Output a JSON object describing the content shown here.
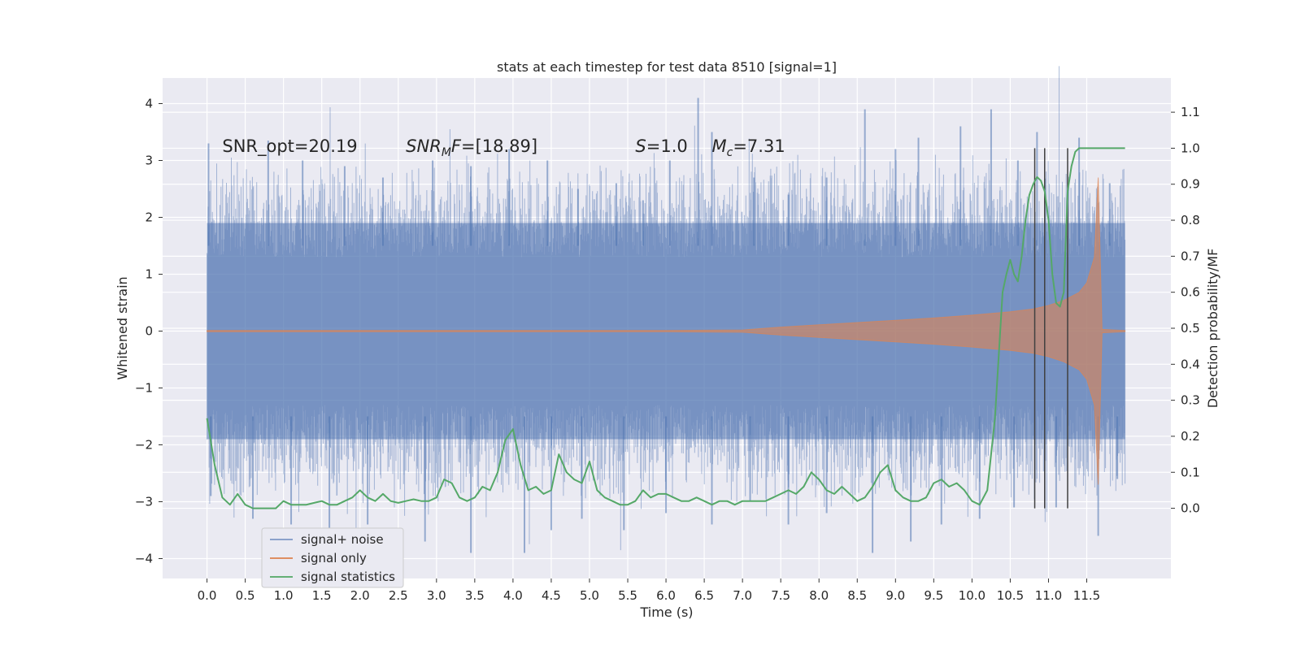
{
  "chart_data": {
    "type": "line",
    "title": "stats at each timestep for test data 8510 [signal=1]",
    "xlabel": "Time (s)",
    "ylabel_left": "Whitened strain",
    "ylabel_right": "Detection probability/MF",
    "xlim": [
      -0.58,
      12.6
    ],
    "ylim_left": [
      -4.35,
      4.45
    ],
    "ylim_right": [
      -0.195,
      1.195
    ],
    "x_ticks": [
      0.0,
      0.5,
      1.0,
      1.5,
      2.0,
      2.5,
      3.0,
      3.5,
      4.0,
      4.5,
      5.0,
      5.5,
      6.0,
      6.5,
      7.0,
      7.5,
      8.0,
      8.5,
      9.0,
      9.5,
      10.0,
      10.5,
      11.0,
      11.5
    ],
    "x_tick_labels": [
      "0.0",
      "0.5",
      "1.0",
      "1.5",
      "2.0",
      "2.5",
      "3.0",
      "3.5",
      "4.0",
      "4.5",
      "5.0",
      "5.5",
      "6.0",
      "6.5",
      "7.0",
      "7.5",
      "8.0",
      "8.5",
      "9.0",
      "9.5",
      "10.0",
      "10.5",
      "11.0",
      "11.5"
    ],
    "y_left_ticks": [
      4,
      3,
      2,
      1,
      0,
      -1,
      -2,
      -3,
      -4
    ],
    "y_left_tick_labels": [
      "4",
      "3",
      "2",
      "1",
      "0",
      "−1",
      "−2",
      "−3",
      "−4"
    ],
    "y_right_ticks": [
      1.1,
      1.0,
      0.9,
      0.8,
      0.7,
      0.6,
      0.5,
      0.4,
      0.3,
      0.2,
      0.1,
      0.0
    ],
    "y_right_tick_labels": [
      "1.1",
      "1.0",
      "0.9",
      "0.8",
      "0.7",
      "0.6",
      "0.5",
      "0.4",
      "0.3",
      "0.2",
      "0.1",
      "0.0"
    ],
    "grid": true,
    "legend_position": "lower-left",
    "annotations": [
      {
        "id": "snr-opt",
        "text": "SNR_opt=20.19",
        "x": 0.2,
        "y": 3.25
      },
      {
        "id": "snr-mf",
        "text": "SNRMF=[18.89]",
        "x": 2.6,
        "y": 3.25
      },
      {
        "id": "s-value",
        "text": "S=1.0",
        "x": 5.6,
        "y": 3.25
      },
      {
        "id": "mc-value",
        "text": "Mc=7.31",
        "x": 6.6,
        "y": 3.25
      }
    ],
    "vertical_markers": {
      "x": [
        10.82,
        10.95,
        11.25
      ],
      "y_range_right": [
        0.0,
        1.0
      ],
      "color": "#404040"
    },
    "series": [
      {
        "name": "signal+ noise",
        "color": "#4c72b0",
        "axis": "left",
        "kind": "noise-band",
        "x_range": [
          0.0,
          12.0
        ],
        "band_typical": [
          -1.9,
          1.9
        ],
        "peaks_up": [
          [
            0.02,
            3.3
          ],
          [
            0.8,
            3.35
          ],
          [
            1.25,
            3.0
          ],
          [
            1.8,
            2.9
          ],
          [
            2.3,
            2.7
          ],
          [
            2.95,
            3.0
          ],
          [
            3.45,
            2.9
          ],
          [
            3.95,
            3.2
          ],
          [
            4.45,
            3.0
          ],
          [
            4.85,
            2.5
          ],
          [
            5.35,
            2.6
          ],
          [
            5.7,
            2.3
          ],
          [
            6.05,
            3.0
          ],
          [
            6.42,
            4.1
          ],
          [
            6.6,
            3.5
          ],
          [
            7.15,
            2.7
          ],
          [
            7.6,
            2.4
          ],
          [
            8.1,
            2.7
          ],
          [
            8.6,
            3.9
          ],
          [
            9.0,
            3.2
          ],
          [
            9.3,
            3.4
          ],
          [
            9.85,
            3.6
          ],
          [
            10.25,
            3.9
          ],
          [
            10.6,
            3.0
          ],
          [
            10.85,
            3.5
          ],
          [
            11.4,
            3.4
          ],
          [
            11.8,
            2.6
          ]
        ],
        "peaks_down": [
          [
            0.05,
            -2.9
          ],
          [
            0.6,
            -3.3
          ],
          [
            1.1,
            -3.4
          ],
          [
            1.6,
            -3.7
          ],
          [
            2.1,
            -3.4
          ],
          [
            2.85,
            -3.7
          ],
          [
            3.45,
            -3.9
          ],
          [
            4.15,
            -3.9
          ],
          [
            4.5,
            -3.5
          ],
          [
            4.9,
            -3.3
          ],
          [
            5.45,
            -3.5
          ],
          [
            6.0,
            -3.2
          ],
          [
            6.6,
            -3.4
          ],
          [
            7.1,
            -3.0
          ],
          [
            7.6,
            -3.4
          ],
          [
            8.1,
            -3.2
          ],
          [
            8.7,
            -3.9
          ],
          [
            9.2,
            -3.7
          ],
          [
            9.6,
            -3.4
          ],
          [
            10.1,
            -3.3
          ],
          [
            10.55,
            -3.1
          ],
          [
            11.1,
            -3.1
          ],
          [
            11.65,
            -3.6
          ],
          [
            11.9,
            -2.6
          ]
        ]
      },
      {
        "name": "signal only",
        "color": "#dd8452",
        "axis": "left",
        "kind": "chirp-envelope",
        "x": [
          0.0,
          6.0,
          7.0,
          7.5,
          8.0,
          8.5,
          9.0,
          9.5,
          10.0,
          10.5,
          10.8,
          11.0,
          11.2,
          11.4,
          11.5,
          11.6,
          11.65,
          11.7,
          12.0
        ],
        "amplitude": [
          0.01,
          0.01,
          0.02,
          0.07,
          0.11,
          0.15,
          0.19,
          0.23,
          0.28,
          0.34,
          0.39,
          0.45,
          0.54,
          0.68,
          0.85,
          1.3,
          2.7,
          0.03,
          0.01
        ]
      },
      {
        "name": "signal statistics",
        "color": "#55a868",
        "axis": "right",
        "kind": "line",
        "x": [
          0.0,
          0.1,
          0.2,
          0.3,
          0.4,
          0.5,
          0.6,
          0.7,
          0.8,
          0.9,
          1.0,
          1.1,
          1.2,
          1.3,
          1.4,
          1.5,
          1.6,
          1.7,
          1.8,
          1.9,
          2.0,
          2.1,
          2.2,
          2.3,
          2.4,
          2.5,
          2.6,
          2.7,
          2.8,
          2.9,
          3.0,
          3.1,
          3.2,
          3.3,
          3.4,
          3.5,
          3.6,
          3.7,
          3.8,
          3.9,
          4.0,
          4.1,
          4.2,
          4.3,
          4.4,
          4.5,
          4.6,
          4.7,
          4.8,
          4.9,
          5.0,
          5.1,
          5.2,
          5.3,
          5.4,
          5.5,
          5.6,
          5.7,
          5.8,
          5.9,
          6.0,
          6.1,
          6.2,
          6.3,
          6.4,
          6.5,
          6.6,
          6.7,
          6.8,
          6.9,
          7.0,
          7.1,
          7.2,
          7.3,
          7.4,
          7.5,
          7.6,
          7.7,
          7.8,
          7.9,
          8.0,
          8.1,
          8.2,
          8.3,
          8.4,
          8.5,
          8.6,
          8.7,
          8.8,
          8.9,
          9.0,
          9.1,
          9.2,
          9.3,
          9.4,
          9.5,
          9.6,
          9.7,
          9.8,
          9.9,
          10.0,
          10.1,
          10.2,
          10.3,
          10.4,
          10.45,
          10.5,
          10.55,
          10.6,
          10.65,
          10.7,
          10.75,
          10.8,
          10.85,
          10.9,
          10.95,
          11.0,
          11.05,
          11.1,
          11.15,
          11.2,
          11.25,
          11.3,
          11.35,
          11.4,
          11.5,
          11.6,
          11.7,
          11.8,
          11.9,
          12.0
        ],
        "y": [
          0.25,
          0.12,
          0.03,
          0.01,
          0.04,
          0.01,
          0.0,
          0.0,
          0.0,
          0.0,
          0.02,
          0.01,
          0.01,
          0.01,
          0.015,
          0.02,
          0.01,
          0.01,
          0.02,
          0.03,
          0.05,
          0.03,
          0.02,
          0.04,
          0.02,
          0.015,
          0.02,
          0.025,
          0.02,
          0.02,
          0.03,
          0.08,
          0.07,
          0.03,
          0.02,
          0.03,
          0.06,
          0.05,
          0.1,
          0.19,
          0.22,
          0.12,
          0.05,
          0.06,
          0.04,
          0.05,
          0.15,
          0.1,
          0.08,
          0.07,
          0.13,
          0.05,
          0.03,
          0.02,
          0.01,
          0.01,
          0.02,
          0.05,
          0.03,
          0.04,
          0.04,
          0.03,
          0.02,
          0.02,
          0.03,
          0.02,
          0.01,
          0.02,
          0.02,
          0.01,
          0.02,
          0.02,
          0.02,
          0.02,
          0.03,
          0.04,
          0.05,
          0.04,
          0.06,
          0.1,
          0.08,
          0.05,
          0.04,
          0.06,
          0.04,
          0.02,
          0.03,
          0.06,
          0.1,
          0.12,
          0.05,
          0.03,
          0.02,
          0.02,
          0.03,
          0.07,
          0.08,
          0.06,
          0.07,
          0.05,
          0.02,
          0.01,
          0.05,
          0.25,
          0.6,
          0.65,
          0.69,
          0.65,
          0.63,
          0.7,
          0.8,
          0.87,
          0.9,
          0.92,
          0.91,
          0.88,
          0.8,
          0.65,
          0.57,
          0.56,
          0.6,
          0.88,
          0.95,
          0.99,
          1.0,
          1.0,
          1.0,
          1.0,
          1.0,
          1.0,
          1.0
        ]
      }
    ]
  }
}
